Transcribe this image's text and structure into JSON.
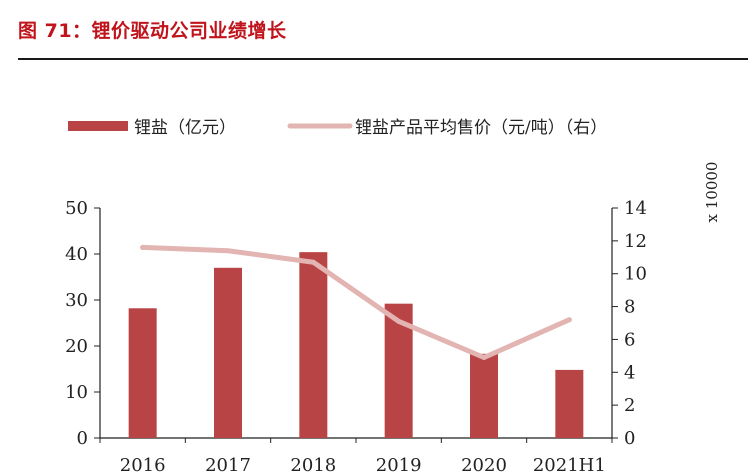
{
  "figure_title": "图 71：锂价驱动公司业绩增长",
  "colors": {
    "bar": "#b94445",
    "line": "#e2b4b2",
    "axis": "#222222",
    "title": "#c0141c"
  },
  "chart_data": {
    "type": "bar",
    "title": "",
    "categories": [
      "2016",
      "2017",
      "2018",
      "2019",
      "2020",
      "2021H1"
    ],
    "series": [
      {
        "name": "锂盐（亿元）",
        "kind": "bar",
        "axis": "left",
        "values": [
          28.2,
          37.0,
          40.4,
          29.2,
          18.3,
          14.8
        ]
      },
      {
        "name": "锂盐产品平均售价（元/吨）（右）",
        "kind": "line",
        "axis": "right",
        "values": [
          11.6,
          11.4,
          10.7,
          7.1,
          4.9,
          7.2
        ]
      }
    ],
    "y_left": {
      "ylim": [
        0,
        50
      ],
      "ticks": [
        "0",
        "10",
        "20",
        "30",
        "40",
        "50"
      ]
    },
    "y_right": {
      "ylim": [
        0,
        14
      ],
      "ticks": [
        "0",
        "2",
        "4",
        "6",
        "8",
        "10",
        "12",
        "14"
      ],
      "multiplier_label": "x 10000"
    },
    "legend": {
      "position": "top"
    }
  }
}
